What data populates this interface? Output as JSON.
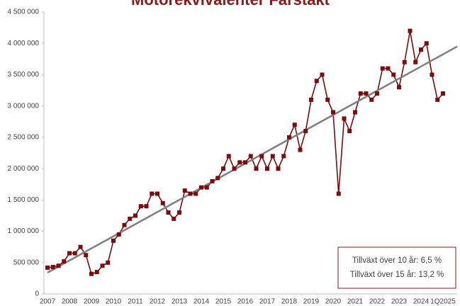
{
  "chart_data": {
    "type": "line",
    "title": "Motorekvivalenter Fårstakt",
    "categories": [
      "2007",
      null,
      null,
      null,
      "2008",
      null,
      null,
      null,
      "2009",
      null,
      null,
      null,
      "2010",
      null,
      null,
      null,
      "2011",
      null,
      null,
      null,
      "2012",
      null,
      null,
      null,
      "2013",
      null,
      null,
      null,
      "2014",
      null,
      null,
      null,
      "2015",
      null,
      null,
      null,
      "2016",
      null,
      null,
      null,
      "2017",
      null,
      null,
      null,
      "2018",
      null,
      null,
      null,
      "2019",
      null,
      null,
      null,
      "2020",
      null,
      null,
      null,
      "2021",
      null,
      null,
      null,
      "2022",
      null,
      null,
      null,
      "2023",
      null,
      null,
      null,
      "2024",
      null,
      null,
      null,
      "1Q2025"
    ],
    "series": [
      {
        "color": "#7b0c0c",
        "values": [
          420000,
          430000,
          450000,
          520000,
          650000,
          650000,
          750000,
          620000,
          320000,
          350000,
          450000,
          500000,
          850000,
          950000,
          1100000,
          1200000,
          1250000,
          1400000,
          1400000,
          1600000,
          1600000,
          1450000,
          1300000,
          1200000,
          1300000,
          1650000,
          1600000,
          1600000,
          1700000,
          1700000,
          1800000,
          1850000,
          2000000,
          2200000,
          2000000,
          2100000,
          2100000,
          2200000,
          2000000,
          2200000,
          2000000,
          2200000,
          2000000,
          2200000,
          2500000,
          2700000,
          2300000,
          2600000,
          3100000,
          3400000,
          3500000,
          3100000,
          2900000,
          1600000,
          2800000,
          2600000,
          2900000,
          3200000,
          3200000,
          3100000,
          3200000,
          3600000,
          3600000,
          3500000,
          3300000,
          3700000,
          4200000,
          3700000,
          3900000,
          4000000,
          3500000,
          3100000,
          3200000
        ]
      }
    ],
    "trend_line": {
      "start": 340000,
      "end": 3950000,
      "color": "#7f7f7f"
    },
    "ylim": [
      0,
      4500000
    ],
    "yticks": [
      0,
      {
        "value": 500000,
        "label": "500 000"
      },
      {
        "value": 1000000,
        "label": "1 000 000"
      },
      {
        "value": 1500000,
        "label": "1 500 000"
      },
      {
        "value": 2000000,
        "label": "2 000 000"
      },
      {
        "value": 2500000,
        "label": "2 500 000"
      },
      {
        "value": 3000000,
        "label": "3 000 000"
      },
      {
        "value": 3500000,
        "label": "3 500 000"
      },
      {
        "value": 4000000,
        "label": "4 000 000"
      },
      {
        "value": 4500000,
        "label": "4 500 000"
      }
    ],
    "grid": false,
    "annotations": [
      "Tillväxt över 10 år: 6,5 %",
      "Tillväxt över 15 år: 13,2 %"
    ]
  }
}
